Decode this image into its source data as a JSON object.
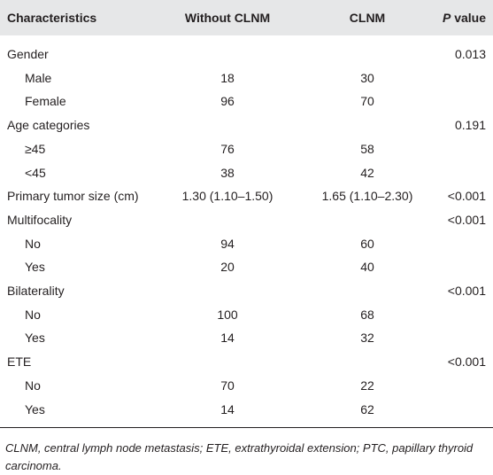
{
  "table": {
    "header": {
      "characteristics": "Characteristics",
      "without": "Without CLNM",
      "clnm": "CLNM",
      "p_italic": "P",
      "p_rest": "value"
    },
    "rows": [
      {
        "label": "Gender",
        "p": "0.013"
      },
      {
        "label": "Male",
        "indent": true,
        "without": "18",
        "clnm": "30"
      },
      {
        "label": "Female",
        "indent": true,
        "without": "96",
        "clnm": "70"
      },
      {
        "label": "Age categories",
        "p": "0.191"
      },
      {
        "label": "≥45",
        "indent": true,
        "without": "76",
        "clnm": "58"
      },
      {
        "label": "<45",
        "indent": true,
        "without": "38",
        "clnm": "42"
      },
      {
        "label": "Primary tumor size (cm)",
        "without": "1.30 (1.10–1.50)",
        "clnm": "1.65 (1.10–2.30)",
        "p": "<0.001"
      },
      {
        "label": "Multifocality",
        "p": "<0.001"
      },
      {
        "label": "No",
        "indent": true,
        "without": "94",
        "clnm": "60"
      },
      {
        "label": "Yes",
        "indent": true,
        "without": "20",
        "clnm": "40"
      },
      {
        "label": "Bilaterality",
        "p": "<0.001"
      },
      {
        "label": "No",
        "indent": true,
        "without": "100",
        "clnm": "68"
      },
      {
        "label": "Yes",
        "indent": true,
        "without": "14",
        "clnm": "32"
      },
      {
        "label": "ETE",
        "p": "<0.001"
      },
      {
        "label": "No",
        "indent": true,
        "without": "70",
        "clnm": "22"
      },
      {
        "label": "Yes",
        "indent": true,
        "without": "14",
        "clnm": "62"
      }
    ],
    "footnote": "CLNM, central lymph node metastasis; ETE, extrathyroidal extension; PTC, papillary thyroid carcinoma."
  }
}
